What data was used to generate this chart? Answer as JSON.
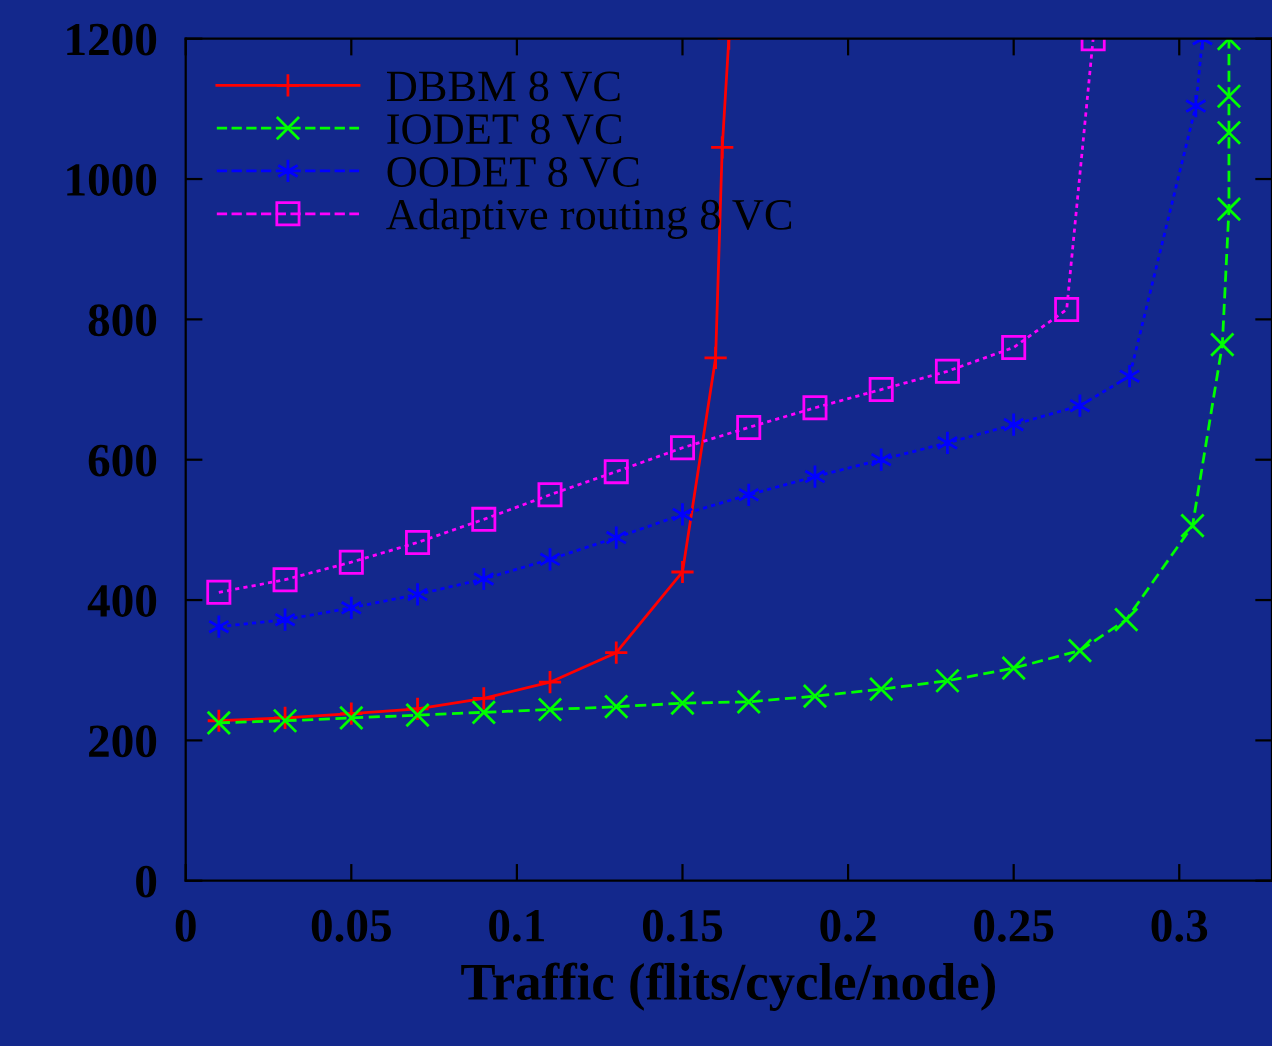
{
  "chart_data": {
    "type": "line",
    "xlabel": "Traffic (flits/cycle/node)",
    "xlim": [
      0,
      0.328
    ],
    "ylim": [
      0,
      1200
    ],
    "xticks": [
      0,
      0.05,
      0.1,
      0.15,
      0.2,
      0.25,
      0.3
    ],
    "yticks": [
      0,
      200,
      400,
      600,
      800,
      1000,
      1200
    ],
    "legend": "top left",
    "grid": false,
    "series": [
      {
        "name": "DBBM 8 VC",
        "color": "#ff0000",
        "marker": "plus",
        "line_style": "solid",
        "x": [
          0.01,
          0.03,
          0.05,
          0.07,
          0.09,
          0.11,
          0.13,
          0.15,
          0.16,
          0.162,
          0.164
        ],
        "values": [
          228,
          232,
          238,
          245,
          260,
          283,
          325,
          440,
          745,
          1045,
          1200
        ]
      },
      {
        "name": "IODET 8 VC",
        "color": "#00ff00",
        "marker": "x",
        "line_style": "dashed",
        "x": [
          0.01,
          0.03,
          0.05,
          0.07,
          0.09,
          0.11,
          0.13,
          0.15,
          0.17,
          0.19,
          0.21,
          0.23,
          0.25,
          0.27,
          0.284,
          0.304,
          0.313,
          0.315,
          0.315,
          0.315,
          0.315
        ],
        "values": [
          225,
          228,
          232,
          236,
          240,
          244,
          248,
          253,
          255,
          263,
          273,
          285,
          303,
          328,
          372,
          506,
          764,
          957,
          1066,
          1118,
          1200
        ]
      },
      {
        "name": "OODET 8 VC",
        "color": "#0000ff",
        "marker": "cross",
        "line_style": "dotted",
        "x": [
          0.01,
          0.03,
          0.05,
          0.07,
          0.09,
          0.11,
          0.13,
          0.15,
          0.17,
          0.19,
          0.21,
          0.23,
          0.25,
          0.27,
          0.285,
          0.305,
          0.307
        ],
        "values": [
          362,
          372,
          389,
          408,
          430,
          458,
          489,
          522,
          550,
          576,
          600,
          624,
          650,
          677,
          719,
          1104,
          1200
        ]
      },
      {
        "name": "Adaptive routing 8 VC",
        "color": "#ff00ff",
        "marker": "square",
        "line_style": "dotted",
        "x": [
          0.01,
          0.03,
          0.05,
          0.07,
          0.09,
          0.11,
          0.13,
          0.15,
          0.17,
          0.19,
          0.21,
          0.23,
          0.25,
          0.266,
          0.274
        ],
        "values": [
          411,
          429,
          454,
          482,
          515,
          550,
          583,
          617,
          646,
          674,
          700,
          726,
          760,
          814,
          1200
        ]
      }
    ]
  }
}
